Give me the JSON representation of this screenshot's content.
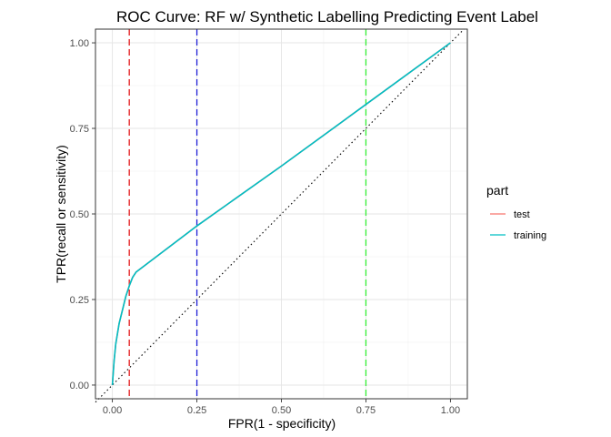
{
  "chart_data": {
    "type": "line",
    "title": "ROC Curve: RF w/ Synthetic Labelling Predicting Event Label",
    "xlabel": "FPR(1 - specificity)",
    "ylabel": "TPR(recall or sensitivity)",
    "xlim": [
      -0.05,
      1.05
    ],
    "ylim": [
      -0.04,
      1.04
    ],
    "x_ticks": [
      0.0,
      0.25,
      0.5,
      0.75,
      1.0
    ],
    "x_tick_labels": [
      "0.00",
      "0.25",
      "0.50",
      "0.75",
      "1.00"
    ],
    "y_ticks": [
      0.0,
      0.25,
      0.5,
      0.75,
      1.0
    ],
    "y_tick_labels": [
      "0.00",
      "0.25",
      "0.50",
      "0.75",
      "1.00"
    ],
    "grid": true,
    "legend": {
      "title": "part",
      "placement": "right",
      "entries": [
        "test",
        "training"
      ]
    },
    "series": [
      {
        "name": "test",
        "color": "#F8766D",
        "x": [
          0.0,
          0.005,
          0.01,
          0.02,
          0.03,
          0.04,
          0.05,
          0.06,
          0.07,
          0.25,
          0.5,
          0.75,
          1.0
        ],
        "y": [
          0.0,
          0.07,
          0.12,
          0.18,
          0.22,
          0.26,
          0.29,
          0.315,
          0.33,
          0.465,
          0.64,
          0.82,
          1.0
        ]
      },
      {
        "name": "training",
        "color": "#00BFC4",
        "x": [
          0.0,
          0.005,
          0.01,
          0.02,
          0.03,
          0.04,
          0.05,
          0.06,
          0.07,
          0.25,
          0.5,
          0.75,
          1.0
        ],
        "y": [
          0.0,
          0.07,
          0.12,
          0.18,
          0.22,
          0.26,
          0.29,
          0.315,
          0.33,
          0.465,
          0.64,
          0.82,
          1.0
        ]
      }
    ],
    "reference_lines": [
      {
        "kind": "diagonal",
        "color": "#000000",
        "style": "dotted"
      },
      {
        "kind": "vertical",
        "x": 0.05,
        "color": "#E41A1C",
        "style": "dashed"
      },
      {
        "kind": "vertical",
        "x": 0.25,
        "color": "#1F1FD6",
        "style": "dashed"
      },
      {
        "kind": "vertical",
        "x": 0.75,
        "color": "#33EE33",
        "style": "dashed"
      }
    ]
  }
}
